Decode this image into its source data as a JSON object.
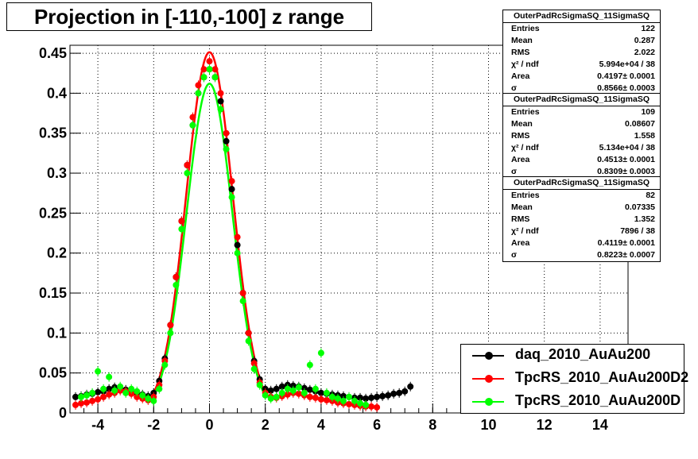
{
  "title": "Projection in [-110,-100] z range",
  "stats": [
    {
      "name": "OuterPadRcSigmaSQ_11SigmaSQ",
      "rows": [
        {
          "label": "Entries",
          "value": "122"
        },
        {
          "label": "Mean",
          "value": "0.287"
        },
        {
          "label": "RMS",
          "value": "2.022"
        },
        {
          "label": "χ² / ndf",
          "value": "5.994e+04 / 38"
        },
        {
          "label": "Area",
          "value": "0.4197± 0.0001"
        },
        {
          "label": "σ",
          "value": "0.8566± 0.0003"
        }
      ]
    },
    {
      "name": "OuterPadRcSigmaSQ_11SigmaSQ",
      "rows": [
        {
          "label": "Entries",
          "value": "109"
        },
        {
          "label": "Mean",
          "value": "0.08607"
        },
        {
          "label": "RMS",
          "value": "1.558"
        },
        {
          "label": "χ² / ndf",
          "value": "5.134e+04 / 38"
        },
        {
          "label": "Area",
          "value": "0.4513± 0.0001"
        },
        {
          "label": "σ",
          "value": "0.8309± 0.0003"
        }
      ]
    },
    {
      "name": "OuterPadRcSigmaSQ_11SigmaSQ",
      "rows": [
        {
          "label": "Entries",
          "value": "82"
        },
        {
          "label": "Mean",
          "value": "0.07335"
        },
        {
          "label": "RMS",
          "value": "1.352"
        },
        {
          "label": "χ² / ndf",
          "value": "7896 / 38"
        },
        {
          "label": "Area",
          "value": "0.4119± 0.0001"
        },
        {
          "label": "σ",
          "value": "0.8223± 0.0007"
        }
      ]
    }
  ],
  "legend": [
    {
      "label": "daq_2010_AuAu200",
      "color": "#000000"
    },
    {
      "label": "TpcRS_2010_AuAu200D2",
      "color": "#ff0000"
    },
    {
      "label": "TpcRS_2010_AuAu200D",
      "color": "#00ff00"
    }
  ],
  "chart_data": {
    "type": "scatter",
    "title": "Projection in [-110,-100] z range",
    "xlim": [
      -5,
      15
    ],
    "ylim": [
      0,
      0.46
    ],
    "x_ticks": [
      -4,
      -2,
      0,
      2,
      4,
      6,
      8,
      10,
      12,
      14
    ],
    "y_ticks": [
      0,
      0.05,
      0.1,
      0.15,
      0.2,
      0.25,
      0.3,
      0.35,
      0.4,
      0.45
    ],
    "y_tick_labels": [
      "0",
      "0.05",
      "0.1",
      "0.15",
      "0.2",
      "0.25",
      "0.3",
      "0.35",
      "0.4",
      "0.45"
    ],
    "grid": true,
    "series": [
      {
        "name": "daq_2010_AuAu200",
        "color": "#000000",
        "x": [
          -4.8,
          -4.6,
          -4.4,
          -4.2,
          -4.0,
          -3.8,
          -3.6,
          -3.4,
          -3.2,
          -3.0,
          -2.8,
          -2.6,
          -2.4,
          -2.2,
          -2.0,
          -1.8,
          -1.6,
          -1.4,
          -1.2,
          -1.0,
          -0.8,
          -0.6,
          -0.4,
          -0.2,
          0.0,
          0.2,
          0.4,
          0.6,
          0.8,
          1.0,
          1.2,
          1.4,
          1.6,
          1.8,
          2.0,
          2.2,
          2.4,
          2.6,
          2.8,
          3.0,
          3.2,
          3.4,
          3.6,
          3.8,
          4.0,
          4.2,
          4.4,
          4.6,
          4.8,
          5.0,
          5.2,
          5.4,
          5.6,
          5.8,
          6.0,
          6.2,
          6.4,
          6.6,
          6.8,
          7.0,
          7.2
        ],
        "y": [
          0.02,
          0.021,
          0.023,
          0.024,
          0.026,
          0.027,
          0.03,
          0.032,
          0.031,
          0.029,
          0.027,
          0.025,
          0.023,
          0.021,
          0.025,
          0.04,
          0.068,
          0.11,
          0.17,
          0.24,
          0.31,
          0.36,
          0.4,
          0.42,
          0.43,
          0.42,
          0.39,
          0.34,
          0.28,
          0.21,
          0.15,
          0.1,
          0.065,
          0.042,
          0.03,
          0.028,
          0.03,
          0.033,
          0.035,
          0.034,
          0.033,
          0.031,
          0.029,
          0.027,
          0.025,
          0.024,
          0.023,
          0.022,
          0.021,
          0.02,
          0.019,
          0.019,
          0.018,
          0.019,
          0.02,
          0.021,
          0.022,
          0.024,
          0.025,
          0.027,
          0.033
        ]
      },
      {
        "name": "TpcRS_2010_AuAu200D2",
        "color": "#ff0000",
        "x": [
          -4.8,
          -4.6,
          -4.4,
          -4.2,
          -4.0,
          -3.8,
          -3.6,
          -3.4,
          -3.2,
          -3.0,
          -2.8,
          -2.6,
          -2.4,
          -2.2,
          -2.0,
          -1.8,
          -1.6,
          -1.4,
          -1.2,
          -1.0,
          -0.8,
          -0.6,
          -0.4,
          -0.2,
          0.0,
          0.2,
          0.4,
          0.6,
          0.8,
          1.0,
          1.2,
          1.4,
          1.6,
          1.8,
          2.0,
          2.2,
          2.4,
          2.6,
          2.8,
          3.0,
          3.2,
          3.4,
          3.6,
          3.8,
          4.0,
          4.2,
          4.4,
          4.6,
          4.8,
          5.0,
          5.2,
          5.4,
          5.6,
          5.8,
          6.0
        ],
        "y": [
          0.01,
          0.012,
          0.013,
          0.015,
          0.017,
          0.02,
          0.023,
          0.025,
          0.028,
          0.027,
          0.024,
          0.02,
          0.018,
          0.016,
          0.02,
          0.035,
          0.065,
          0.11,
          0.17,
          0.24,
          0.31,
          0.37,
          0.41,
          0.43,
          0.44,
          0.43,
          0.4,
          0.35,
          0.29,
          0.22,
          0.15,
          0.1,
          0.062,
          0.038,
          0.025,
          0.02,
          0.019,
          0.021,
          0.023,
          0.025,
          0.024,
          0.022,
          0.02,
          0.019,
          0.017,
          0.016,
          0.015,
          0.013,
          0.012,
          0.011,
          0.01,
          0.009,
          0.008,
          0.008,
          0.007
        ]
      },
      {
        "name": "TpcRS_2010_AuAu200D",
        "color": "#00ff00",
        "x": [
          -4.6,
          -4.4,
          -4.2,
          -4.0,
          -3.8,
          -3.6,
          -3.4,
          -3.2,
          -3.0,
          -2.8,
          -2.6,
          -2.4,
          -2.2,
          -2.0,
          -1.8,
          -1.6,
          -1.4,
          -1.2,
          -1.0,
          -0.8,
          -0.6,
          -0.4,
          -0.2,
          0.0,
          0.2,
          0.4,
          0.6,
          0.8,
          1.0,
          1.2,
          1.4,
          1.6,
          1.8,
          2.0,
          2.2,
          2.4,
          2.6,
          2.8,
          3.0,
          3.2,
          3.4,
          3.6,
          3.8,
          4.0,
          4.2,
          4.4,
          4.6,
          4.8,
          5.0,
          5.2,
          5.4,
          5.6
        ],
        "y": [
          0.02,
          0.022,
          0.025,
          0.052,
          0.03,
          0.045,
          0.028,
          0.033,
          0.025,
          0.03,
          0.027,
          0.022,
          0.018,
          0.015,
          0.03,
          0.06,
          0.1,
          0.16,
          0.23,
          0.3,
          0.36,
          0.4,
          0.42,
          0.43,
          0.42,
          0.38,
          0.33,
          0.27,
          0.2,
          0.14,
          0.09,
          0.055,
          0.035,
          0.022,
          0.018,
          0.02,
          0.025,
          0.03,
          0.028,
          0.032,
          0.025,
          0.06,
          0.03,
          0.075,
          0.025,
          0.02,
          0.018,
          0.015,
          0.02,
          0.015,
          0.012,
          0.01
        ]
      }
    ],
    "fits": [
      {
        "name": "TpcRS_2010_AuAu200D2",
        "color": "#ff0000",
        "area": 0.4513,
        "sigma": 0.8309,
        "mean": 0.0,
        "range": [
          -2,
          2
        ]
      },
      {
        "name": "TpcRS_2010_AuAu200D",
        "color": "#00ff00",
        "area": 0.4119,
        "sigma": 0.8223,
        "mean": 0.0,
        "range": [
          -2,
          2
        ]
      }
    ]
  }
}
